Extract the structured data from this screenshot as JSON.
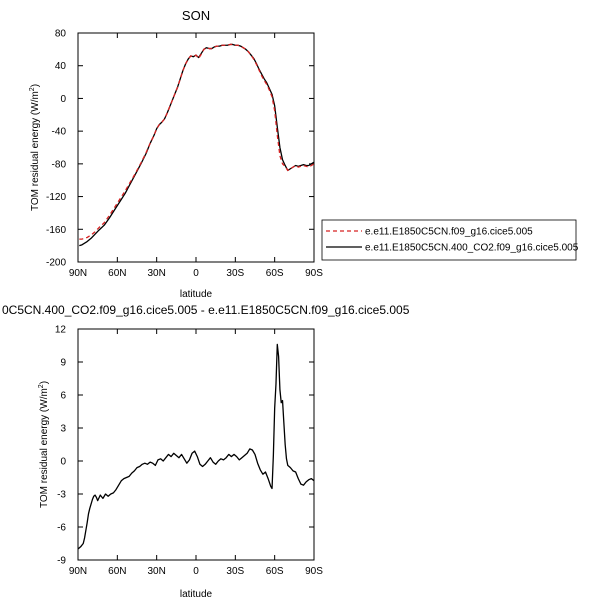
{
  "chart_data": [
    {
      "type": "line",
      "title": "SON",
      "xlabel": "latitude",
      "ylabel": "TOM residual energy (W/m",
      "ylabel_superscript": "2",
      "ylabel_close": ")",
      "xlim": [
        90,
        -90
      ],
      "ylim": [
        -200,
        80
      ],
      "xticks": [
        90,
        60,
        30,
        0,
        -30,
        -60,
        -90
      ],
      "xtick_labels": [
        "90N",
        "60N",
        "30N",
        "0",
        "30S",
        "60S",
        "90S"
      ],
      "yticks": [
        -200,
        -160,
        -120,
        -80,
        -40,
        0,
        40,
        80
      ],
      "ytick_labels": [
        "-200",
        "-160",
        "-120",
        "-80",
        "-40",
        "0",
        "40",
        "80"
      ],
      "grid": false,
      "legend_position": "right",
      "series": [
        {
          "name": "e.e11.E1850C5CN.f09_g16.cice5.005",
          "color": "#d62020",
          "dash": "dashed",
          "x": [
            89,
            87,
            85,
            83,
            80,
            77,
            74,
            70,
            66,
            62,
            58,
            54,
            50,
            46,
            42,
            38,
            35,
            32,
            30,
            28,
            26,
            24,
            22,
            20,
            18,
            16,
            14,
            12,
            10,
            8,
            6,
            4,
            2,
            0,
            -2,
            -4,
            -6,
            -8,
            -10,
            -12,
            -14,
            -16,
            -18,
            -20,
            -22,
            -24,
            -26,
            -28,
            -30,
            -32,
            -34,
            -36,
            -38,
            -40,
            -42,
            -44,
            -46,
            -48,
            -50,
            -52,
            -54,
            -56,
            -58,
            -60,
            -62,
            -64,
            -66,
            -68,
            -70,
            -72,
            -74,
            -76,
            -78,
            -80,
            -82,
            -84,
            -86,
            -88,
            -90
          ],
          "y": [
            -172,
            -172,
            -171,
            -170,
            -167,
            -163,
            -158,
            -152,
            -143,
            -133,
            -123,
            -113,
            -102,
            -91,
            -79,
            -66,
            -55,
            -45,
            -37,
            -32,
            -29,
            -25,
            -18,
            -10,
            -2,
            6,
            14,
            24,
            34,
            42,
            48,
            52,
            51,
            53,
            49,
            54,
            60,
            62,
            61,
            61,
            63,
            64,
            64,
            65,
            65,
            65,
            66,
            66,
            65,
            65,
            64,
            62,
            60,
            57,
            53,
            48,
            42,
            35,
            28,
            22,
            17,
            10,
            2,
            -15,
            -45,
            -70,
            -80,
            -83,
            -88,
            -86,
            -84,
            -82,
            -84,
            -83,
            -82,
            -83,
            -84,
            -82,
            -80
          ]
        },
        {
          "name": "e.e11.E1850C5CN.400_CO2.f09_g16.cice5.005",
          "color": "#000000",
          "dash": "solid",
          "x": [
            89,
            87,
            85,
            83,
            80,
            77,
            74,
            70,
            66,
            62,
            58,
            54,
            50,
            46,
            42,
            38,
            35,
            32,
            30,
            28,
            26,
            24,
            22,
            20,
            18,
            16,
            14,
            12,
            10,
            8,
            6,
            4,
            2,
            0,
            -2,
            -4,
            -6,
            -8,
            -10,
            -12,
            -14,
            -16,
            -18,
            -20,
            -22,
            -24,
            -26,
            -28,
            -30,
            -32,
            -34,
            -36,
            -38,
            -40,
            -42,
            -44,
            -46,
            -48,
            -50,
            -52,
            -54,
            -56,
            -58,
            -60,
            -62,
            -64,
            -66,
            -68,
            -70,
            -72,
            -74,
            -76,
            -78,
            -80,
            -82,
            -84,
            -86,
            -88,
            -90
          ],
          "y": [
            -180,
            -179,
            -177,
            -175,
            -171,
            -166,
            -161,
            -155,
            -146,
            -136,
            -126,
            -116,
            -104,
            -92,
            -80,
            -67,
            -55,
            -45,
            -37,
            -32,
            -29,
            -25,
            -18,
            -10,
            -2,
            6,
            14,
            24,
            34,
            42,
            48,
            52,
            51,
            53,
            50,
            55,
            60,
            62,
            61,
            61,
            63,
            64,
            64,
            65,
            65,
            65,
            66,
            66,
            65,
            65,
            64,
            62,
            60,
            57,
            53,
            49,
            43,
            36,
            30,
            24,
            19,
            12,
            5,
            -9,
            -35,
            -60,
            -75,
            -82,
            -88,
            -86,
            -84,
            -82,
            -83,
            -82,
            -81,
            -82,
            -82,
            -80,
            -78
          ]
        }
      ]
    },
    {
      "type": "line",
      "title": "0C5CN.400_CO2.f09_g16.cice5.005 - e.e11.E1850C5CN.f09_g16.cice5.005",
      "xlabel": "latitude",
      "ylabel": "TOM residual energy (W/m",
      "ylabel_superscript": "2",
      "ylabel_close": ")",
      "xlim": [
        90,
        -90
      ],
      "ylim": [
        -9,
        12
      ],
      "xticks": [
        90,
        60,
        30,
        0,
        -30,
        -60,
        -90
      ],
      "xtick_labels": [
        "90N",
        "60N",
        "30N",
        "0",
        "30S",
        "60S",
        "90S"
      ],
      "yticks": [
        -9,
        -6,
        -3,
        0,
        3,
        6,
        9,
        12
      ],
      "ytick_labels": [
        "-9",
        "-6",
        "-3",
        "0",
        "3",
        "6",
        "9",
        "12"
      ],
      "grid": false,
      "series": [
        {
          "color": "#000000",
          "x": [
            90,
            88,
            86,
            85,
            84,
            83,
            82,
            81,
            80,
            79,
            78,
            77,
            76,
            75,
            73,
            71,
            69,
            67,
            65,
            63,
            61,
            59,
            57,
            55,
            53,
            51,
            49,
            47,
            45,
            43,
            41,
            39,
            37,
            35,
            33,
            31,
            29,
            27,
            25,
            23,
            21,
            19,
            17,
            15,
            13,
            11,
            9,
            7,
            5,
            3,
            1,
            -1,
            -3,
            -5,
            -7,
            -9,
            -11,
            -13,
            -15,
            -17,
            -19,
            -21,
            -23,
            -25,
            -27,
            -29,
            -31,
            -33,
            -35,
            -37,
            -39,
            -41,
            -43,
            -45,
            -47,
            -49,
            -51,
            -53,
            -55,
            -57,
            -58,
            -59,
            -60,
            -61,
            -62,
            -63,
            -64,
            -65,
            -66,
            -67,
            -68,
            -69,
            -70,
            -72,
            -74,
            -76,
            -78,
            -80,
            -82,
            -84,
            -86,
            -88,
            -90
          ],
          "y": [
            -8.0,
            -7.8,
            -7.5,
            -7.0,
            -6.3,
            -5.6,
            -4.8,
            -4.3,
            -3.9,
            -3.5,
            -3.2,
            -3.1,
            -3.3,
            -3.6,
            -3.1,
            -3.4,
            -3.0,
            -3.2,
            -3.0,
            -2.9,
            -2.6,
            -2.2,
            -1.8,
            -1.6,
            -1.5,
            -1.4,
            -1.1,
            -0.9,
            -0.6,
            -0.5,
            -0.3,
            -0.2,
            -0.3,
            -0.1,
            -0.2,
            -0.4,
            0.1,
            0.2,
            0.0,
            0.3,
            0.6,
            0.4,
            0.7,
            0.5,
            0.3,
            0.6,
            0.2,
            -0.2,
            0.1,
            0.7,
            0.9,
            0.4,
            -0.3,
            -0.5,
            -0.3,
            0.0,
            0.3,
            -0.1,
            -0.3,
            0.0,
            0.2,
            0.1,
            0.3,
            0.6,
            0.4,
            0.6,
            0.4,
            0.1,
            0.3,
            0.5,
            0.7,
            1.1,
            1.0,
            0.6,
            -0.2,
            -0.8,
            -1.2,
            -1.0,
            -1.6,
            -2.3,
            -2.5,
            0.5,
            4.8,
            7.0,
            10.6,
            9.5,
            6.5,
            5.3,
            5.5,
            3.5,
            1.5,
            0.2,
            -0.4,
            -0.6,
            -0.9,
            -1.0,
            -1.6,
            -2.1,
            -2.2,
            -1.9,
            -1.7,
            -1.6,
            -1.8
          ]
        }
      ]
    }
  ]
}
